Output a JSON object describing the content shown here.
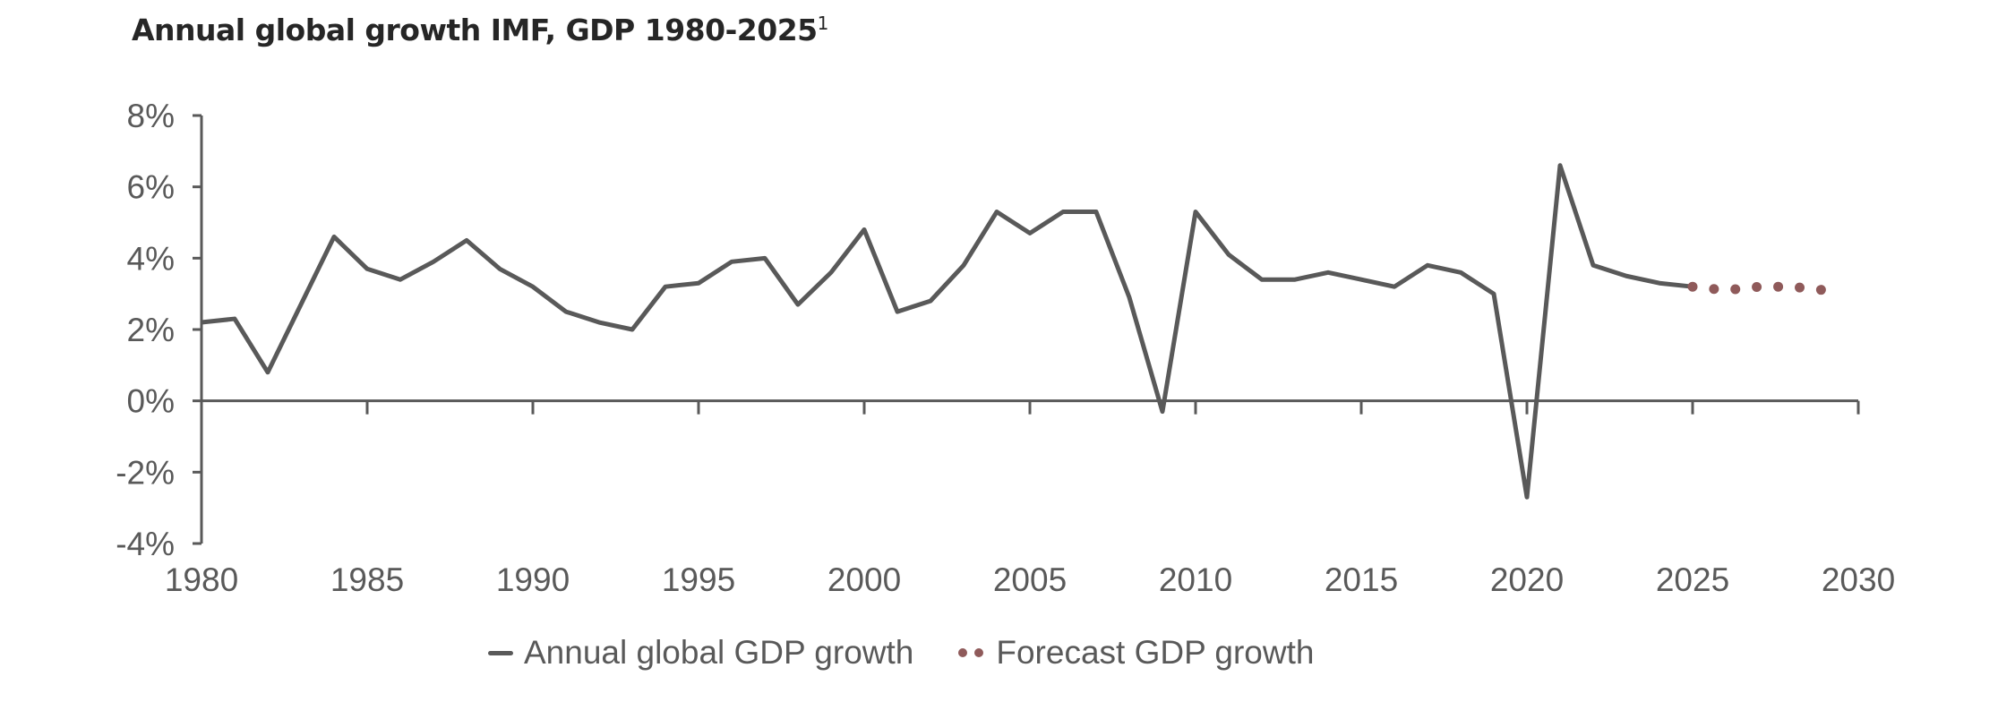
{
  "chart_data": {
    "type": "line",
    "title": "Annual global growth IMF, GDP 1980-2025",
    "title_superscript": "1",
    "xlim": [
      1980,
      2030
    ],
    "ylim": [
      -4,
      8
    ],
    "x_ticks": [
      1980,
      1985,
      1990,
      1995,
      2000,
      2005,
      2010,
      2015,
      2020,
      2025,
      2030
    ],
    "x_tick_labels": [
      "1980",
      "1985",
      "1990",
      "1995",
      "2000",
      "2005",
      "2010",
      "2015",
      "2020",
      "2025",
      "2030"
    ],
    "y_ticks": [
      8,
      6,
      4,
      2,
      0,
      -2,
      -4
    ],
    "y_tick_labels": [
      "8%",
      "6%",
      "4%",
      "2%",
      "0%",
      "-2%",
      "-4%"
    ],
    "grid": false,
    "legend_placement": "bottom",
    "series": [
      {
        "name": "Annual global GDP growth",
        "color": "#595959",
        "style": "solid",
        "x": [
          1980,
          1981,
          1982,
          1983,
          1984,
          1985,
          1986,
          1987,
          1988,
          1989,
          1990,
          1991,
          1992,
          1993,
          1994,
          1995,
          1996,
          1997,
          1998,
          1999,
          2000,
          2001,
          2002,
          2003,
          2004,
          2005,
          2006,
          2007,
          2008,
          2009,
          2010,
          2011,
          2012,
          2013,
          2014,
          2015,
          2016,
          2017,
          2018,
          2019,
          2020,
          2021,
          2022,
          2023,
          2024,
          2025
        ],
        "values": [
          2.2,
          2.3,
          0.8,
          2.7,
          4.6,
          3.7,
          3.4,
          3.9,
          4.5,
          3.7,
          3.2,
          2.5,
          2.2,
          2.0,
          3.2,
          3.3,
          3.9,
          4.0,
          2.7,
          3.6,
          4.8,
          2.5,
          2.8,
          3.8,
          5.3,
          4.7,
          5.3,
          5.3,
          2.9,
          -0.3,
          5.3,
          4.1,
          3.4,
          3.4,
          3.6,
          3.4,
          3.2,
          3.8,
          3.6,
          3.0,
          -2.7,
          6.6,
          3.8,
          3.5,
          3.3,
          3.2
        ]
      },
      {
        "name": "Forecast GDP growth",
        "color": "#8f5a5a",
        "style": "dotted",
        "x": [
          2025,
          2026,
          2027,
          2028,
          2029
        ],
        "values": [
          3.2,
          3.1,
          3.2,
          3.2,
          3.1
        ]
      }
    ]
  }
}
